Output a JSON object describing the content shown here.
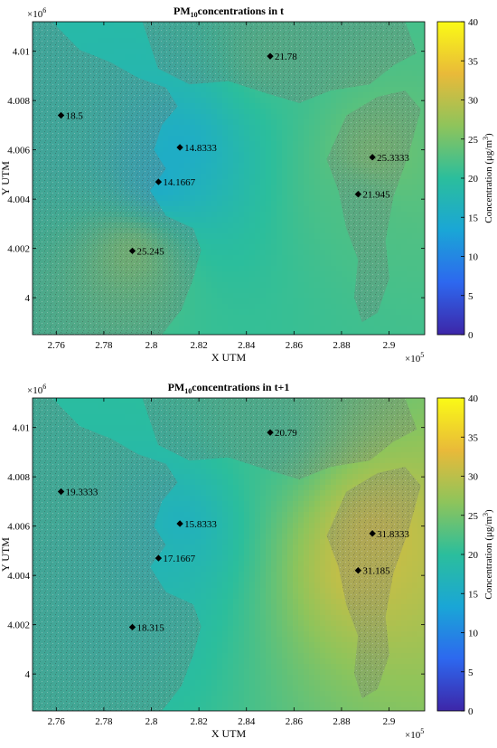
{
  "colors": {
    "viridis_stops": [
      "#3d26a8",
      "#2d68ef",
      "#1aa6d6",
      "#2bbe9c",
      "#8ec45b",
      "#e9ba39",
      "#fafa16"
    ],
    "land_gray": "#7a7d78",
    "marker": "#000000"
  },
  "chart_data": [
    {
      "type": "heatmap",
      "title_main": "PM",
      "title_sub": "10",
      "title_rest": "concentrations in t",
      "xlabel": "X UTM",
      "ylabel": "Y UTM",
      "x_exponent": "×10",
      "x_exponent_power": "5",
      "y_exponent": "×10",
      "y_exponent_power": "6",
      "xlim": [
        2.75,
        2.915
      ],
      "ylim": [
        3.9985,
        4.0112
      ],
      "xticks": [
        2.76,
        2.78,
        2.8,
        2.82,
        2.84,
        2.86,
        2.88,
        2.9
      ],
      "xtick_labels": [
        "2.76",
        "2.78",
        "2.8",
        "2.82",
        "2.84",
        "2.86",
        "2.88",
        "2.9"
      ],
      "yticks": [
        4.0,
        4.002,
        4.004,
        4.006,
        4.008,
        4.01
      ],
      "ytick_labels": [
        "4",
        "4.002",
        "4.004",
        "4.006",
        "4.008",
        "4.01"
      ],
      "colorbar": {
        "label": "Concentration (μg/m",
        "label_power": "3",
        "label_close": ")",
        "min": 0,
        "max": 40,
        "ticks": [
          0,
          5,
          10,
          15,
          20,
          25,
          30,
          35,
          40
        ],
        "tick_labels": [
          "0",
          "5",
          "10",
          "15",
          "20",
          "25",
          "30",
          "35",
          "40"
        ]
      },
      "points": [
        {
          "x": 2.85,
          "y": 4.0098,
          "value": 21.78,
          "label": "21.78"
        },
        {
          "x": 2.762,
          "y": 4.0074,
          "value": 18.5,
          "label": "18.5"
        },
        {
          "x": 2.812,
          "y": 4.0061,
          "value": 14.8333,
          "label": "14.8333"
        },
        {
          "x": 2.893,
          "y": 4.0057,
          "value": 25.3333,
          "label": "25.3333"
        },
        {
          "x": 2.803,
          "y": 4.0047,
          "value": 14.1667,
          "label": "14.1667"
        },
        {
          "x": 2.887,
          "y": 4.0042,
          "value": 21.945,
          "label": "21.945"
        },
        {
          "x": 2.792,
          "y": 4.0019,
          "value": 25.245,
          "label": "25.245"
        }
      ]
    },
    {
      "type": "heatmap",
      "title_main": "PM",
      "title_sub": "10",
      "title_rest": "concentrations in t+1",
      "xlabel": "X UTM",
      "ylabel": "Y UTM",
      "x_exponent": "×10",
      "x_exponent_power": "5",
      "y_exponent": "×10",
      "y_exponent_power": "6",
      "xlim": [
        2.75,
        2.915
      ],
      "ylim": [
        3.9985,
        4.0112
      ],
      "xticks": [
        2.76,
        2.78,
        2.8,
        2.82,
        2.84,
        2.86,
        2.88,
        2.9
      ],
      "xtick_labels": [
        "2.76",
        "2.78",
        "2.8",
        "2.82",
        "2.84",
        "2.86",
        "2.88",
        "2.9"
      ],
      "yticks": [
        4.0,
        4.002,
        4.004,
        4.006,
        4.008,
        4.01
      ],
      "ytick_labels": [
        "4",
        "4.002",
        "4.004",
        "4.006",
        "4.008",
        "4.01"
      ],
      "colorbar": {
        "label": "Concentration (μg/m",
        "label_power": "3",
        "label_close": ")",
        "min": 0,
        "max": 40,
        "ticks": [
          0,
          5,
          10,
          15,
          20,
          25,
          30,
          35,
          40
        ],
        "tick_labels": [
          "0",
          "5",
          "10",
          "15",
          "20",
          "25",
          "30",
          "35",
          "40"
        ]
      },
      "points": [
        {
          "x": 2.85,
          "y": 4.0098,
          "value": 20.79,
          "label": "20.79"
        },
        {
          "x": 2.762,
          "y": 4.0074,
          "value": 19.3333,
          "label": "19.3333"
        },
        {
          "x": 2.812,
          "y": 4.0061,
          "value": 15.8333,
          "label": "15.8333"
        },
        {
          "x": 2.893,
          "y": 4.0057,
          "value": 31.8333,
          "label": "31.8333"
        },
        {
          "x": 2.803,
          "y": 4.0047,
          "value": 17.1667,
          "label": "17.1667"
        },
        {
          "x": 2.887,
          "y": 4.0042,
          "value": 31.185,
          "label": "31.185"
        },
        {
          "x": 2.792,
          "y": 4.0019,
          "value": 18.315,
          "label": "18.315"
        }
      ]
    }
  ]
}
